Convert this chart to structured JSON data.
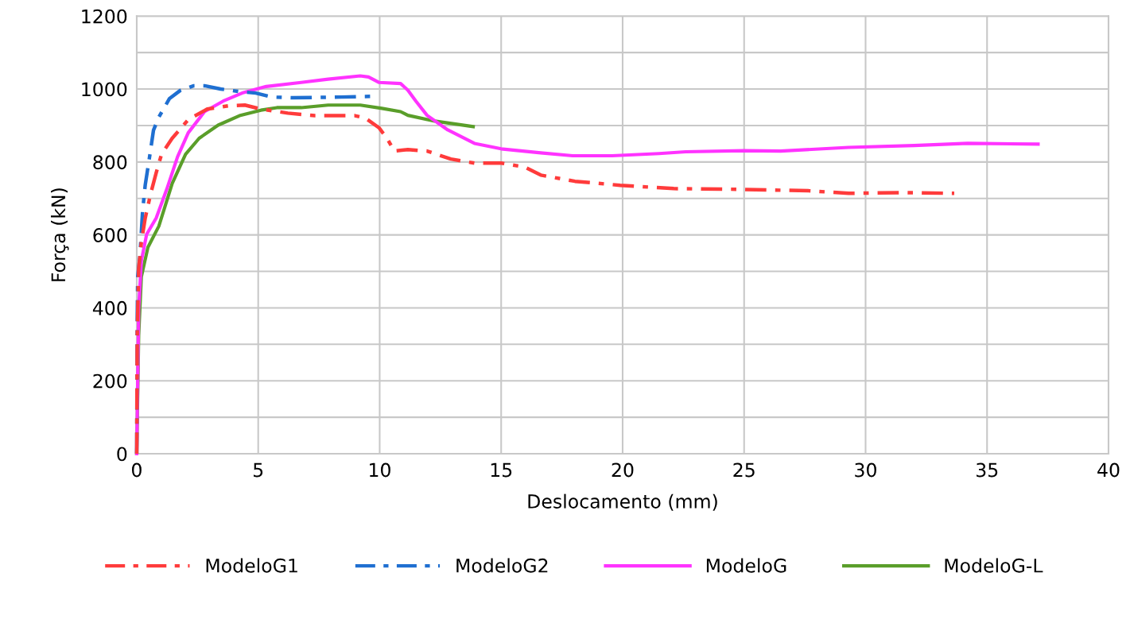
{
  "chart_data": {
    "type": "line",
    "xlabel": "Deslocamento (mm)",
    "ylabel": "Força (kN)",
    "xlim": [
      0,
      40
    ],
    "ylim": [
      0,
      1200
    ],
    "xticks": [
      0,
      5,
      10,
      15,
      20,
      25,
      30,
      35,
      40
    ],
    "yticks": [
      0,
      {
        "value": 100,
        "label": null
      },
      200,
      {
        "value": 300,
        "label": null
      },
      400,
      {
        "value": 500,
        "label": null
      },
      600,
      {
        "value": 700,
        "label": null
      },
      800,
      {
        "value": 900,
        "label": null
      },
      1000,
      {
        "value": 1100,
        "label": null
      },
      1200
    ],
    "grid": true,
    "legend": "bottom",
    "marker": "none",
    "series": [
      {
        "name": "ModeloG1",
        "color": "#ff3b3b",
        "line_style": "dashdot",
        "x": [
          0,
          0.02,
          0.08,
          0.19,
          0.35,
          0.57,
          0.8,
          1.02,
          1.46,
          2.12,
          2.9,
          3.78,
          4.45,
          5.11,
          6.22,
          7.33,
          8.98,
          9.42,
          9.97,
          10.3,
          10.6,
          11.16,
          11.95,
          12.93,
          13.9,
          15,
          15.97,
          16.63,
          18.04,
          19.9,
          22.1,
          24.8,
          27.66,
          29.3,
          31.46,
          33.65
        ],
        "values": [
          0,
          325,
          507,
          580,
          646,
          712,
          770,
          821,
          865,
          916,
          945,
          954,
          956,
          945,
          934,
          927,
          927,
          920,
          894,
          865,
          830,
          834,
          830,
          808,
          797,
          797,
          786,
          764,
          747,
          736,
          727,
          725,
          721,
          714,
          716,
          714
        ]
      },
      {
        "name": "ModeloG2",
        "color": "#1f6fd1",
        "line_style": "dashdot",
        "x": [
          0,
          0.02,
          0.04,
          0.13,
          0.24,
          0.35,
          0.52,
          0.69,
          0.91,
          1.35,
          1.79,
          2.35,
          2.79,
          3.45,
          4.23,
          4.9,
          5.55,
          6.44,
          8.43,
          9.7
        ],
        "values": [
          0,
          361,
          485,
          540,
          664,
          737,
          810,
          887,
          923,
          974,
          996,
          1009,
          1009,
          1000,
          993,
          989,
          978,
          976,
          978,
          980
        ]
      },
      {
        "name": "ModeloG",
        "color": "#ff33ff",
        "line_style": "solid",
        "x": [
          0,
          0.08,
          0.19,
          0.41,
          0.8,
          1.24,
          1.68,
          2.12,
          2.79,
          3.56,
          4.34,
          5.33,
          6.77,
          7.88,
          9.2,
          9.54,
          9.98,
          10.86,
          11.16,
          11.49,
          11.95,
          12.8,
          13.9,
          15,
          16.63,
          17.94,
          19.57,
          21.5,
          22.6,
          25,
          26.5,
          29.3,
          32,
          34.2,
          37.1
        ],
        "values": [
          0,
          398,
          529,
          602,
          646,
          726,
          814,
          880,
          938,
          967,
          989,
          1007,
          1018,
          1027,
          1036,
          1033,
          1018,
          1015,
          997,
          967,
          928,
          888,
          851,
          836,
          825,
          817,
          817,
          823,
          828,
          831,
          830,
          840,
          845,
          851,
          849
        ]
      },
      {
        "name": "ModeloG-L",
        "color": "#5a9e2a",
        "line_style": "solid",
        "x": [
          0,
          0.08,
          0.19,
          0.46,
          0.91,
          1.46,
          2.01,
          2.57,
          3.35,
          4.23,
          5.11,
          5.77,
          6.77,
          7.88,
          9.2,
          10.09,
          10.86,
          11.16,
          12.27,
          13.85
        ],
        "values": [
          0,
          325,
          485,
          566,
          624,
          741,
          821,
          865,
          901,
          927,
          942,
          949,
          949,
          956,
          956,
          947,
          938,
          928,
          912,
          897
        ]
      }
    ]
  }
}
